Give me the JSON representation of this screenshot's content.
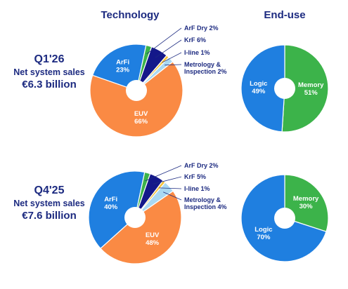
{
  "headers": {
    "technology": "Technology",
    "end_use": "End-use"
  },
  "colors": {
    "label_dark": "#1c2a80",
    "label_light": "#ffffff",
    "ArFi": "#1f7fe0",
    "EUV": "#fa8a44",
    "ArF Dry": "#3cb34a",
    "KrF": "#14188a",
    "I-line": "#f4c23a",
    "Metrology & Inspection": "#a9d8f2",
    "Logic": "#1f7fe0",
    "Memory": "#3cb34a"
  },
  "periods": [
    {
      "period": "Q1'26",
      "subtitle": "Net system sales",
      "value": "€6.3 billion"
    },
    {
      "period": "Q4'25",
      "subtitle": "Net system sales",
      "value": "€7.6 billion"
    }
  ],
  "chart_data": [
    {
      "type": "pie",
      "title": "Technology",
      "period": "Q1'26",
      "slices": [
        {
          "name": "EUV",
          "value": 66,
          "inside": [
            "EUV",
            "66%"
          ]
        },
        {
          "name": "ArFi",
          "value": 23,
          "inside": [
            "ArFi",
            "23%"
          ]
        },
        {
          "name": "ArF Dry",
          "value": 2,
          "callout": [
            "ArF Dry 2%"
          ]
        },
        {
          "name": "KrF",
          "value": 6,
          "callout": [
            "KrF 6%"
          ]
        },
        {
          "name": "I-line",
          "value": 1,
          "callout": [
            "I-line 1%"
          ]
        },
        {
          "name": "Metrology & Inspection",
          "value": 2,
          "callout": [
            "Metrology &",
            "Inspection 2%"
          ]
        }
      ]
    },
    {
      "type": "pie",
      "title": "End-use",
      "period": "Q1'26",
      "slices": [
        {
          "name": "Memory",
          "value": 51,
          "inside": [
            "Memory",
            "51%"
          ]
        },
        {
          "name": "Logic",
          "value": 49,
          "inside": [
            "Logic",
            "49%"
          ]
        }
      ]
    },
    {
      "type": "pie",
      "title": "Technology",
      "period": "Q4'25",
      "slices": [
        {
          "name": "EUV",
          "value": 48,
          "inside": [
            "EUV",
            "48%"
          ]
        },
        {
          "name": "ArFi",
          "value": 40,
          "inside": [
            "ArFi",
            "40%"
          ]
        },
        {
          "name": "ArF Dry",
          "value": 2,
          "callout": [
            "ArF Dry 2%"
          ]
        },
        {
          "name": "KrF",
          "value": 5,
          "callout": [
            "KrF 5%"
          ]
        },
        {
          "name": "I-line",
          "value": 1,
          "callout": [
            "I-line 1%"
          ]
        },
        {
          "name": "Metrology & Inspection",
          "value": 4,
          "callout": [
            "Metrology &",
            "Inspection 4%"
          ]
        }
      ]
    },
    {
      "type": "pie",
      "title": "End-use",
      "period": "Q4'25",
      "slices": [
        {
          "name": "Memory",
          "value": 30,
          "inside": [
            "Memory",
            "30%"
          ]
        },
        {
          "name": "Logic",
          "value": 70,
          "inside": [
            "Logic",
            "70%"
          ]
        }
      ]
    }
  ]
}
